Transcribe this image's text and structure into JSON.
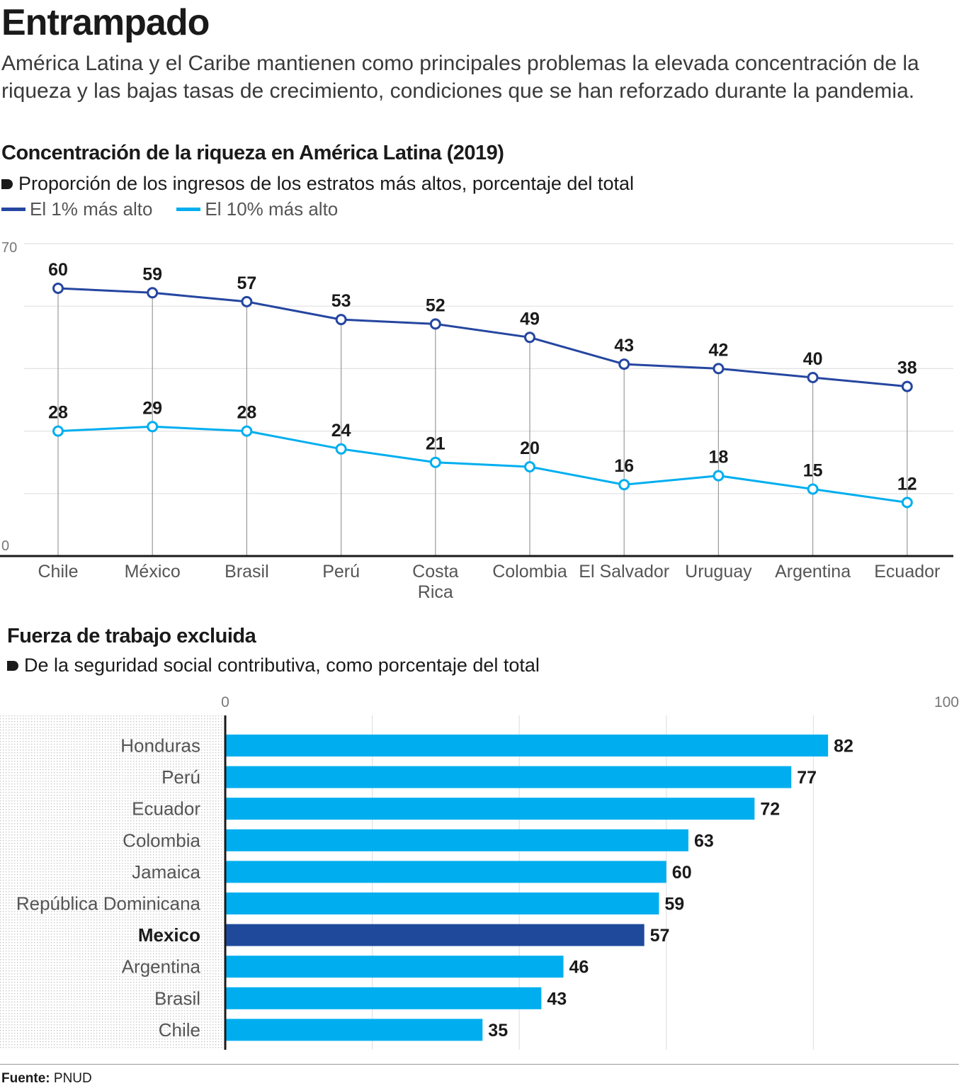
{
  "header": {
    "title": "Entrampado",
    "intro": "América Latina y el Caribe mantienen como principales problemas la elevada concentración de la riqueza y las bajas tasas de crecimiento, condiciones que se han reforzado durante la pandemia."
  },
  "chart1": {
    "heading": "Concentración de la riqueza en América Latina (2019)",
    "subtitle": "Proporción de los ingresos de los estratos más altos, porcentaje del total",
    "legend_1pct": "El 1% más alto",
    "legend_10pct": "El 10% más alto"
  },
  "chart2": {
    "heading": "Fuerza de trabajo excluida",
    "subtitle": "De la seguridad social contributiva, como porcentaje del total"
  },
  "source": {
    "label": "Fuente:",
    "value": "PNUD"
  },
  "colors": {
    "dark_blue": "#2546a0",
    "light_blue": "#00aeef",
    "highlight": "#1f4a9c"
  },
  "chart_data": [
    {
      "type": "line",
      "title": "Concentración de la riqueza en América Latina (2019)",
      "ylim": [
        0,
        70
      ],
      "yticks": [
        "0",
        "70"
      ],
      "categories": [
        "Chile",
        "México",
        "Brasil",
        "Perú",
        "Costa Rica",
        "Colombia",
        "El Salvador",
        "Uruguay",
        "Argentina",
        "Ecuador"
      ],
      "category_lines": [
        [
          "Chile"
        ],
        [
          "México"
        ],
        [
          "Brasil"
        ],
        [
          "Perú"
        ],
        [
          "Costa",
          "Rica"
        ],
        [
          "Colombia"
        ],
        [
          "El Salvador"
        ],
        [
          "Uruguay"
        ],
        [
          "Argentina"
        ],
        [
          "Ecuador"
        ]
      ],
      "series": [
        {
          "name": "El 1% más alto",
          "color": "#2546a0",
          "values": [
            60,
            59,
            57,
            53,
            52,
            49,
            43,
            42,
            40,
            38
          ]
        },
        {
          "name": "El 10% más alto",
          "color": "#00aeef",
          "values": [
            28,
            29,
            28,
            24,
            21,
            20,
            16,
            18,
            15,
            12
          ]
        }
      ]
    },
    {
      "type": "bar",
      "orientation": "horizontal",
      "title": "Fuerza de trabajo excluida",
      "xlim": [
        0,
        100
      ],
      "xticks": [
        "0",
        "100"
      ],
      "categories": [
        "Honduras",
        "Perú",
        "Ecuador",
        "Colombia",
        "Jamaica",
        "República Dominicana",
        "Mexico",
        "Argentina",
        "Brasil",
        "Chile"
      ],
      "values": [
        82,
        77,
        72,
        63,
        60,
        59,
        57,
        46,
        43,
        35
      ],
      "highlight": "Mexico"
    }
  ]
}
